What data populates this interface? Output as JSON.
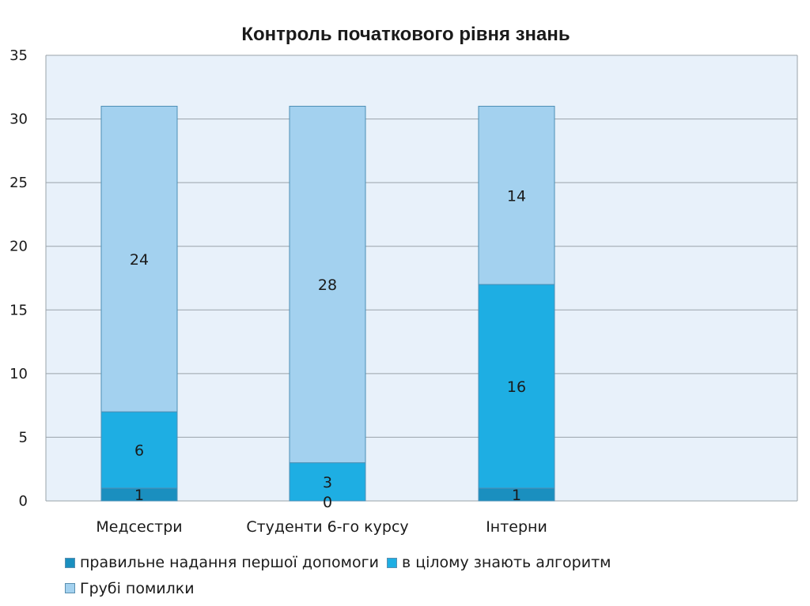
{
  "chart_data": {
    "type": "bar",
    "stacked": true,
    "title": "Контроль початкового рівня знань",
    "categories": [
      "Медсестри",
      "Студенти 6-го курсу",
      "Інтерни"
    ],
    "series": [
      {
        "name": "правильне надання першої допомоги",
        "values": [
          1,
          0,
          1
        ],
        "color": "#1a8fbf",
        "labels": [
          "1",
          "0",
          "1"
        ]
      },
      {
        "name": "в цілому знають алгоритм",
        "values": [
          6,
          3,
          16
        ],
        "color": "#1eaee3",
        "labels": [
          "6",
          "3",
          "16"
        ]
      },
      {
        "name": "Грубі помилки",
        "values": [
          24,
          28,
          14
        ],
        "color": "#a3d1ef",
        "labels": [
          "24",
          "28",
          "14"
        ]
      }
    ],
    "ylim": [
      0,
      35
    ],
    "yticks": [
      "0",
      "5",
      "10",
      "15",
      "20",
      "25",
      "30",
      "35"
    ],
    "grid": true,
    "legend_position": "bottom",
    "plot_background": "#e8f1fa"
  }
}
